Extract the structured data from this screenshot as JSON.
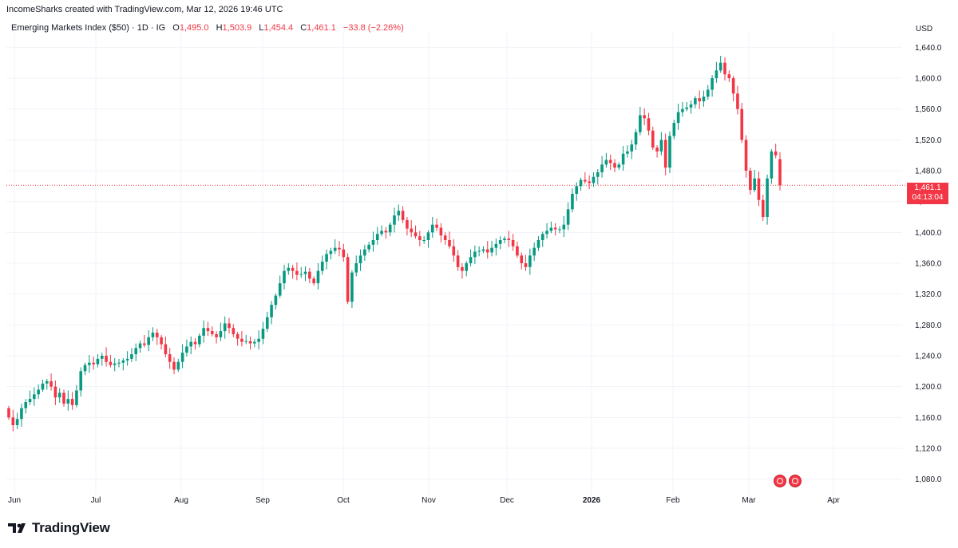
{
  "header": {
    "credit": "IncomeSharks created with TradingView.com, Mar 12, 2026 19:46 UTC"
  },
  "legend": {
    "symbol": "Emerging Markets Index ($50) · 1D · IG",
    "open_label": "O",
    "open": "1,495.0",
    "high_label": "H",
    "high": "1,503.9",
    "low_label": "L",
    "low": "1,454.4",
    "close_label": "C",
    "close": "1,461.1",
    "change": "−33.8 (−2.26%)"
  },
  "currency": "USD",
  "price_tag": {
    "price": "1,461.1",
    "countdown": "04:13:04"
  },
  "brand": {
    "name": "TradingView"
  },
  "events": [
    {
      "icon": "us-flag-event-icon"
    },
    {
      "icon": "us-flag-event-icon"
    }
  ],
  "colors": {
    "up": "#089981",
    "down": "#f23645",
    "grid": "#f0f3fa"
  },
  "chart_data": {
    "type": "candlestick",
    "title": "Emerging Markets Index ($50)",
    "interval": "1D",
    "ylim": [
      1060,
      1660
    ],
    "y_ticks": [
      "1,080.0",
      "1,120.0",
      "1,160.0",
      "1,200.0",
      "1,240.0",
      "1,280.0",
      "1,320.0",
      "1,360.0",
      "1,400.0",
      "1,440.0",
      "1,480.0",
      "1,520.0",
      "1,560.0",
      "1,600.0",
      "1,640.0"
    ],
    "x_labels": [
      {
        "label": "Jun",
        "month": "2025-06"
      },
      {
        "label": "Jul",
        "month": "2025-07"
      },
      {
        "label": "Aug",
        "month": "2025-08"
      },
      {
        "label": "Sep",
        "month": "2025-09"
      },
      {
        "label": "Oct",
        "month": "2025-10"
      },
      {
        "label": "Nov",
        "month": "2025-11"
      },
      {
        "label": "Dec",
        "month": "2025-12"
      },
      {
        "label": "2026",
        "month": "2026-01",
        "bold": true
      },
      {
        "label": "Feb",
        "month": "2026-02"
      },
      {
        "label": "Mar",
        "month": "2026-03"
      },
      {
        "label": "Apr",
        "month": "2026-04"
      }
    ],
    "closes": [
      1160,
      1150,
      1158,
      1172,
      1180,
      1184,
      1190,
      1196,
      1204,
      1207,
      1200,
      1186,
      1192,
      1178,
      1184,
      1176,
      1195,
      1220,
      1228,
      1231,
      1229,
      1236,
      1240,
      1232,
      1228,
      1230,
      1231,
      1234,
      1236,
      1242,
      1250,
      1256,
      1254,
      1264,
      1270,
      1264,
      1255,
      1242,
      1232,
      1222,
      1232,
      1244,
      1252,
      1258,
      1255,
      1266,
      1276,
      1272,
      1268,
      1264,
      1272,
      1282,
      1276,
      1268,
      1262,
      1258,
      1259,
      1256,
      1258,
      1262,
      1275,
      1290,
      1306,
      1318,
      1334,
      1350,
      1354,
      1350,
      1345,
      1346,
      1349,
      1340,
      1334,
      1350,
      1362,
      1372,
      1376,
      1380,
      1378,
      1368,
      1310,
      1348,
      1360,
      1370,
      1378,
      1384,
      1390,
      1398,
      1402,
      1400,
      1410,
      1422,
      1428,
      1416,
      1405,
      1400,
      1395,
      1390,
      1390,
      1400,
      1410,
      1406,
      1396,
      1390,
      1382,
      1370,
      1355,
      1350,
      1360,
      1368,
      1375,
      1376,
      1378,
      1374,
      1380,
      1385,
      1390,
      1392,
      1390,
      1382,
      1370,
      1360,
      1355,
      1370,
      1380,
      1390,
      1398,
      1402,
      1406,
      1404,
      1404,
      1410,
      1430,
      1450,
      1460,
      1468,
      1466,
      1464,
      1472,
      1478,
      1488,
      1494,
      1490,
      1484,
      1488,
      1502,
      1505,
      1514,
      1530,
      1552,
      1548,
      1532,
      1510,
      1505,
      1520,
      1484,
      1525,
      1542,
      1556,
      1560,
      1562,
      1566,
      1574,
      1570,
      1576,
      1585,
      1600,
      1610,
      1620,
      1605,
      1600,
      1580,
      1560,
      1520,
      1480,
      1455,
      1470,
      1442,
      1420,
      1470,
      1505,
      1500,
      1461.1
    ],
    "last": {
      "open": 1495.0,
      "high": 1503.9,
      "low": 1454.4,
      "close": 1461.1,
      "change": -33.8,
      "change_pct": -2.26
    }
  }
}
